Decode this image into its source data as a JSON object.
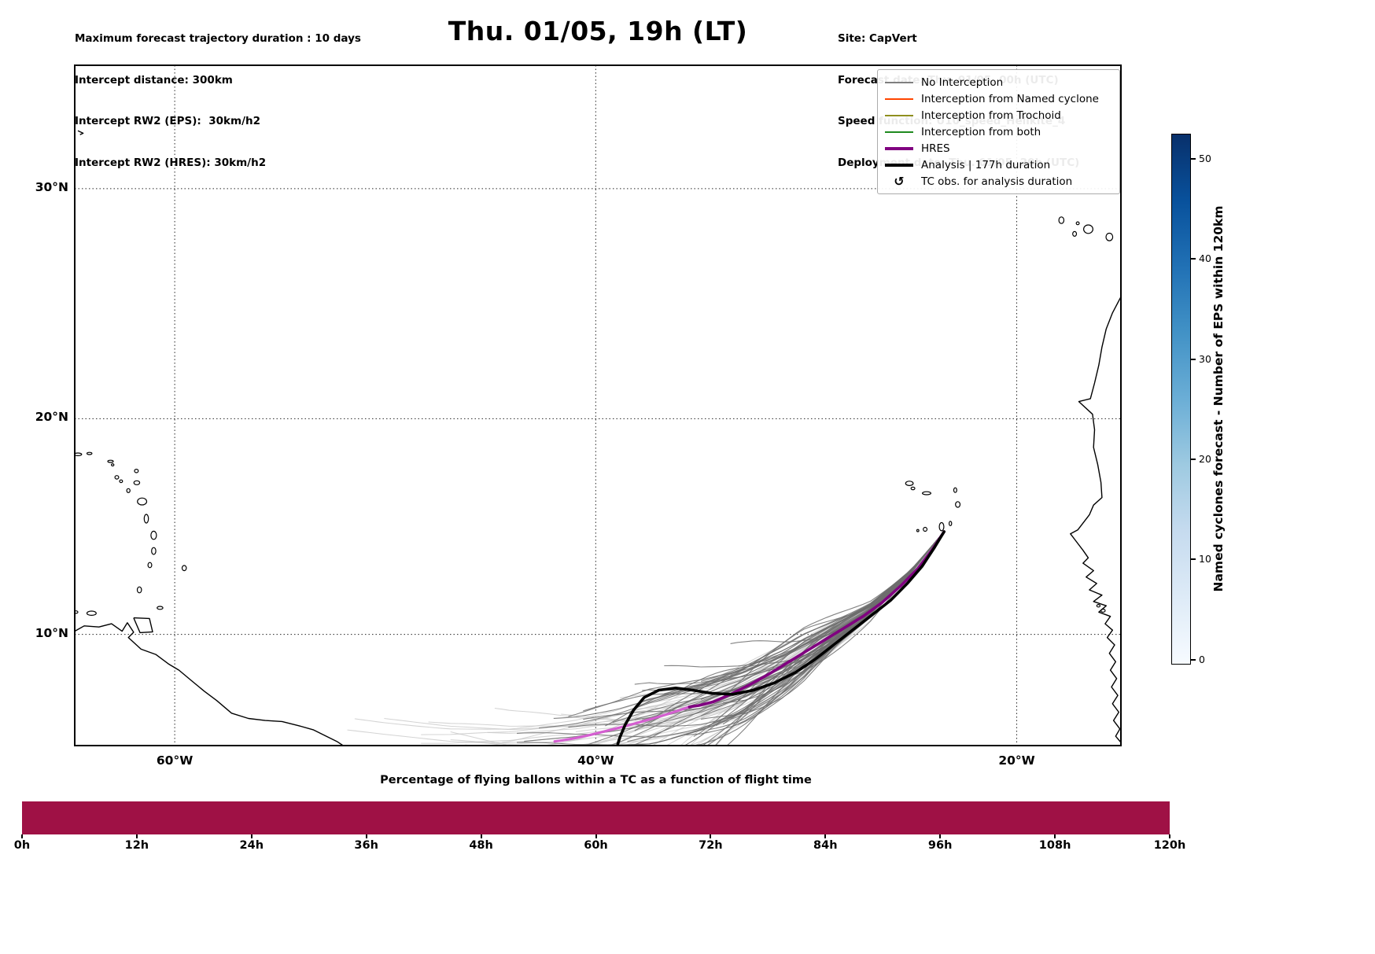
{
  "header": {
    "left": [
      "Maximum forecast trajectory duration : 10 days",
      "Intercept distance: 300km",
      "Intercept RW2 (EPS):  30km/h2",
      "Intercept RW2 (HRES): 30km/h2"
    ],
    "title": "Thu. 01/05, 19h (LT)",
    "right": [
      "Site: CapVert",
      "Forecast date: Thu. 01/05, 00h (UTC)",
      "Speed function: U10_speed_Helikite_4",
      "Deployment date: Thu. 01/05, 20h (UTC)"
    ]
  },
  "legend": {
    "items": [
      {
        "label": "No Interception",
        "type": "line",
        "color": "#7f7f7f",
        "weight": 1.5
      },
      {
        "label": "Interception from Named cyclone",
        "type": "line",
        "color": "#ff4500",
        "weight": 1.5
      },
      {
        "label": "Interception from Trochoid",
        "type": "line",
        "color": "#8f8f1f",
        "weight": 1.5
      },
      {
        "label": "Interception from both",
        "type": "line",
        "color": "#1e8a1e",
        "weight": 1.5
      },
      {
        "label": "HRES",
        "type": "line",
        "color": "#800080",
        "weight": 3.5
      },
      {
        "label": "Analysis | 177h duration",
        "type": "line",
        "color": "#000000",
        "weight": 3.5
      },
      {
        "label": "TC obs. for analysis duration",
        "type": "symbol",
        "symbol": "↺",
        "color": "#000000"
      }
    ]
  },
  "colorbar": {
    "label": "Named cyclones forecast - Number of EPS within 120km",
    "ticks": [
      "0",
      "10",
      "20",
      "30",
      "40",
      "50"
    ],
    "tick_values": [
      0,
      10,
      20,
      30,
      40,
      50
    ],
    "colors": [
      "#f7fbff",
      "#deebf7",
      "#c6dbef",
      "#9ecae1",
      "#6baed6",
      "#4292c6",
      "#2171b5",
      "#08519c",
      "#08306b"
    ]
  },
  "chart_data": [
    {
      "type": "line",
      "name": "balloon-trajectory-map",
      "title": "Thu. 01/05, 19h (LT)",
      "projection": "mercator",
      "lon_range": [
        -64.75,
        -15.05
      ],
      "lat_range": [
        4.7,
        35.0
      ],
      "x_ticks": [
        {
          "lon": -60,
          "label": "60°W"
        },
        {
          "lon": -40,
          "label": "40°W"
        },
        {
          "lon": -20,
          "label": "20°W"
        }
      ],
      "y_ticks": [
        {
          "lat": 30,
          "label": "30°N"
        },
        {
          "lat": 20,
          "label": "20°N"
        },
        {
          "lat": 10,
          "label": "10°N"
        }
      ],
      "site": {
        "name": "CapVert",
        "lon": -23.45,
        "lat": 14.82
      },
      "series": [
        {
          "name": "Analysis | 177h duration",
          "color": "#000000",
          "width": 3.6,
          "points": [
            [
              -23.45,
              14.82
            ],
            [
              -23.9,
              14.1
            ],
            [
              -24.5,
              13.2
            ],
            [
              -25.2,
              12.4
            ],
            [
              -26.0,
              11.6
            ],
            [
              -26.9,
              10.9
            ],
            [
              -27.8,
              10.2
            ],
            [
              -28.7,
              9.5
            ],
            [
              -29.6,
              8.8
            ],
            [
              -30.5,
              8.2
            ],
            [
              -31.5,
              7.7
            ],
            [
              -32.5,
              7.35
            ],
            [
              -33.5,
              7.15
            ],
            [
              -34.5,
              7.2
            ],
            [
              -35.4,
              7.35
            ],
            [
              -36.2,
              7.45
            ],
            [
              -37.0,
              7.35
            ],
            [
              -37.7,
              7.0
            ],
            [
              -38.2,
              6.4
            ],
            [
              -38.6,
              5.7
            ],
            [
              -38.85,
              5.1
            ],
            [
              -38.95,
              4.78
            ]
          ]
        },
        {
          "name": "HRES",
          "color": "#800080",
          "width": 3.6,
          "points": [
            [
              -23.45,
              14.82
            ],
            [
              -24.0,
              14.0
            ],
            [
              -24.7,
              13.1
            ],
            [
              -25.5,
              12.3
            ],
            [
              -26.4,
              11.5
            ],
            [
              -27.3,
              10.85
            ],
            [
              -28.2,
              10.3
            ],
            [
              -29.1,
              9.75
            ],
            [
              -30.0,
              9.2
            ],
            [
              -30.9,
              8.65
            ],
            [
              -31.8,
              8.1
            ],
            [
              -32.7,
              7.6
            ],
            [
              -33.6,
              7.15
            ],
            [
              -34.4,
              6.8
            ],
            [
              -35.1,
              6.62
            ],
            [
              -35.55,
              6.55
            ]
          ]
        },
        {
          "name": "HRES extension",
          "color": "#d45fd0",
          "width": 3.2,
          "points": [
            [
              -35.55,
              6.55
            ],
            [
              -36.3,
              6.3
            ],
            [
              -37.1,
              6.05
            ],
            [
              -37.9,
              5.82
            ],
            [
              -38.7,
              5.6
            ],
            [
              -39.5,
              5.4
            ],
            [
              -40.3,
              5.2
            ],
            [
              -41.0,
              5.05
            ],
            [
              -41.6,
              4.95
            ],
            [
              -41.95,
              4.9
            ]
          ]
        }
      ],
      "ensemble": {
        "seed": 11,
        "start": [
          -23.45,
          14.82
        ],
        "base_knots": [
          [
            -23.45,
            14.82
          ],
          [
            -25,
            13.0
          ],
          [
            -27,
            11.15
          ],
          [
            -29,
            9.85
          ],
          [
            -31,
            8.55
          ],
          [
            -33,
            7.5
          ],
          [
            -35,
            6.7
          ],
          [
            -37,
            6.1
          ],
          [
            -39,
            5.65
          ],
          [
            -41,
            5.35
          ],
          [
            -44,
            5.15
          ],
          [
            -47,
            5.3
          ],
          [
            -50,
            5.65
          ],
          [
            -53,
            6.05
          ]
        ],
        "dark": {
          "count": 52,
          "color": "#6d6d6d",
          "opacity": 0.85,
          "width": 1.1,
          "end_lon": [
            -33.5,
            -44.5
          ]
        },
        "light": {
          "count": 34,
          "color": "#c6c6c6",
          "opacity": 0.75,
          "width": 1.05,
          "end_lon": [
            -37,
            -52.5
          ]
        }
      }
    },
    {
      "type": "bar",
      "name": "tc-percentage-bar",
      "title": "Percentage of flying ballons within a TC as a function of flight time",
      "x_tick_labels": [
        "0h",
        "12h",
        "24h",
        "36h",
        "48h",
        "60h",
        "72h",
        "84h",
        "96h",
        "108h",
        "120h"
      ],
      "x_range_hours": [
        0,
        120
      ],
      "values": [
        100,
        100,
        100,
        100,
        100,
        100,
        100,
        100,
        100,
        100,
        100
      ],
      "bar_color": "#9f1145"
    }
  ]
}
